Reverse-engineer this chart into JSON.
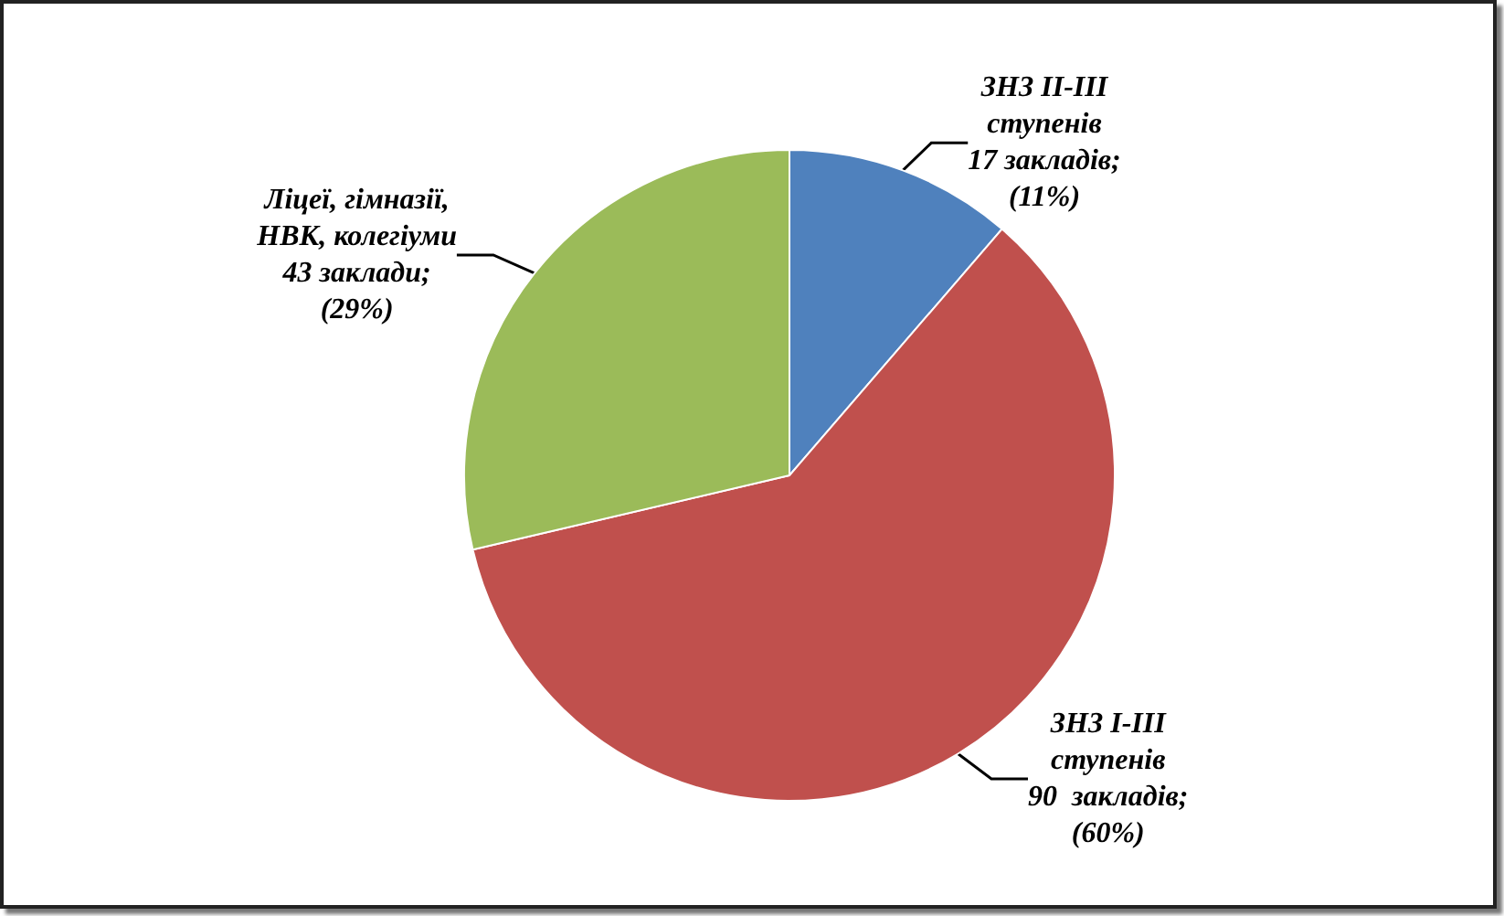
{
  "chart_data": {
    "type": "pie",
    "categories": [
      "ЗНЗ II-III ступенів",
      "ЗНЗ I-III ступенів",
      "Ліцеї, гімназії, НВК, колегіуми"
    ],
    "values": [
      17,
      90,
      43
    ],
    "value_labels": [
      "17 закладів; (11%)",
      "90  закладів; (60%)",
      "43 заклади; (29%)"
    ],
    "colors": [
      "#4f81bd",
      "#c0504d",
      "#9bbb59"
    ],
    "legend": false
  }
}
